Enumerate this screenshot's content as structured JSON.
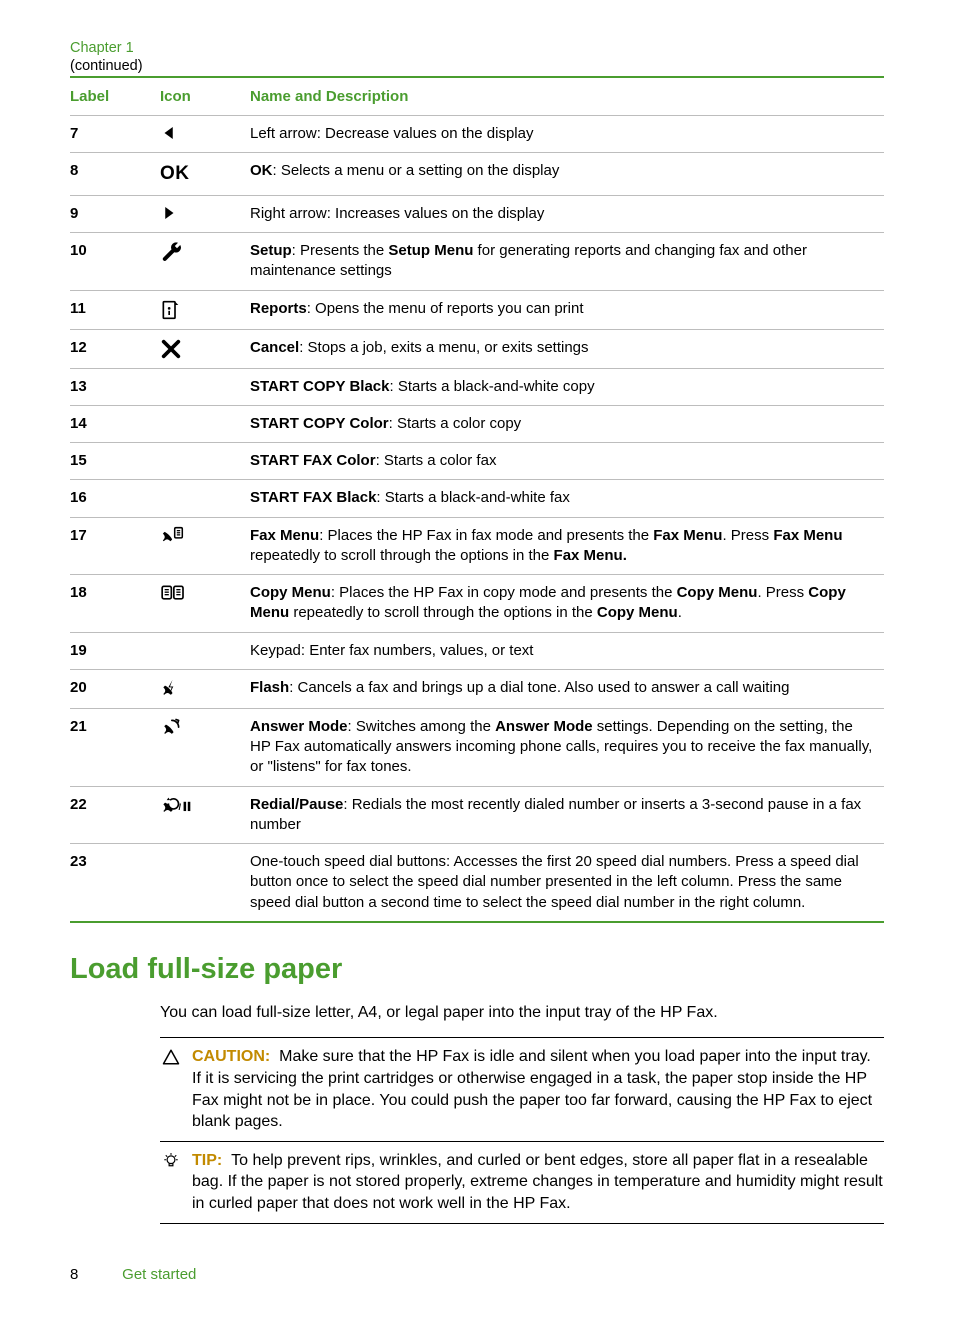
{
  "header": {
    "chapter": "Chapter 1",
    "continued": "(continued)"
  },
  "table": {
    "headers": {
      "label": "Label",
      "icon": "Icon",
      "desc": "Name and Description"
    },
    "rows": [
      {
        "label": "7",
        "icon": "left-arrow",
        "desc": "Left arrow: Decrease values on the display"
      },
      {
        "label": "8",
        "icon": "ok",
        "desc": "<b>OK</b>: Selects a menu or a setting on the display"
      },
      {
        "label": "9",
        "icon": "right-arrow",
        "desc": "Right arrow: Increases values on the display"
      },
      {
        "label": "10",
        "icon": "wrench",
        "desc": "<b>Setup</b>: Presents the <b>Setup Menu</b> for generating reports and changing fax and other maintenance settings"
      },
      {
        "label": "11",
        "icon": "report",
        "desc": "<b>Reports</b>: Opens the menu of reports you can print"
      },
      {
        "label": "12",
        "icon": "cancel",
        "desc": "<b>Cancel</b>: Stops a job, exits a menu, or exits settings"
      },
      {
        "label": "13",
        "icon": "",
        "desc": "<b>START COPY Black</b>: Starts a black-and-white copy"
      },
      {
        "label": "14",
        "icon": "",
        "desc": "<b>START COPY Color</b>: Starts a color copy"
      },
      {
        "label": "15",
        "icon": "",
        "desc": "<b>START FAX Color</b>: Starts a color fax"
      },
      {
        "label": "16",
        "icon": "",
        "desc": "<b>START FAX Black</b>: Starts a black-and-white fax"
      },
      {
        "label": "17",
        "icon": "fax-menu",
        "desc": "<b>Fax Menu</b>: Places the HP Fax in fax mode and presents the <b>Fax Menu</b>. Press <b>Fax Menu</b> repeatedly to scroll through the options in the <b>Fax Menu.</b>"
      },
      {
        "label": "18",
        "icon": "copy-menu",
        "desc": "<b>Copy Menu</b>: Places the HP Fax in copy mode and presents the <b>Copy Menu</b>. Press <b>Copy Menu</b> repeatedly to scroll through the options in the <b>Copy Menu</b>."
      },
      {
        "label": "19",
        "icon": "",
        "desc": "Keypad: Enter fax numbers, values, or text"
      },
      {
        "label": "20",
        "icon": "flash",
        "desc": "<b>Flash</b>: Cancels a fax and brings up a dial tone. Also used to answer a call waiting"
      },
      {
        "label": "21",
        "icon": "answer-mode",
        "desc": "<b>Answer Mode</b>: Switches among the <b>Answer Mode</b> settings. Depending on the setting, the HP Fax automatically answers incoming phone calls, requires you to receive the fax manually, or \"listens\" for fax tones."
      },
      {
        "label": "22",
        "icon": "redial-pause",
        "desc": "<b>Redial/Pause</b>: Redials the most recently dialed number or inserts a 3-second pause in a fax number"
      },
      {
        "label": "23",
        "icon": "",
        "desc": "One-touch speed dial buttons: Accesses the first 20 speed dial numbers. Press a speed dial button once to select the speed dial number presented in the left column. Press the same speed dial button a second time to select the speed dial number in the right column."
      }
    ]
  },
  "section": {
    "title": "Load full-size paper",
    "intro": "You can load full-size letter, A4, or legal paper into the input tray of the HP Fax.",
    "caution_label": "CAUTION:",
    "caution_text": "Make sure that the HP Fax is idle and silent when you load paper into the input tray. If it is servicing the print cartridges or otherwise engaged in a task, the paper stop inside the HP Fax might not be in place. You could push the paper too far forward, causing the HP Fax to eject blank pages.",
    "tip_label": "TIP:",
    "tip_text": "To help prevent rips, wrinkles, and curled or bent edges, store all paper flat in a resealable bag. If the paper is not stored properly, extreme changes in temperature and humidity might result in curled paper that does not work well in the HP Fax."
  },
  "footer": {
    "page": "8",
    "title": "Get started"
  },
  "colors": {
    "accent": "#4a9d2f",
    "warn": "#c28a00"
  }
}
